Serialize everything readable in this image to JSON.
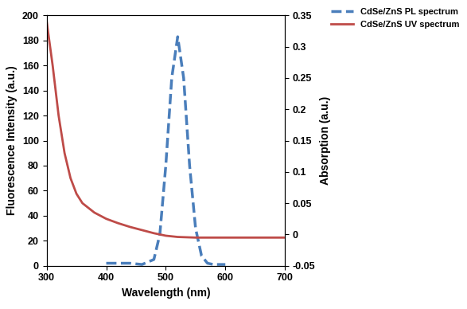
{
  "chart_data": {
    "type": "line",
    "x_label": "Wavelength (nm)",
    "y_label": "Fluorescence Intensity (a.u.)",
    "y2_label": "Absorption (a.u.)",
    "xlim": [
      300,
      700
    ],
    "xticks": [
      300,
      400,
      500,
      600,
      700
    ],
    "ylim": [
      0,
      200
    ],
    "yticks": [
      0,
      20,
      40,
      60,
      80,
      100,
      120,
      140,
      160,
      180,
      200
    ],
    "y2lim": [
      -0.05,
      0.35
    ],
    "y2ticks": [
      -0.05,
      0,
      0.05,
      0.1,
      0.15,
      0.2,
      0.25,
      0.3,
      0.35
    ],
    "grid": false,
    "legend": "upper right",
    "series": [
      {
        "name": "CdSe/ZnS PL spectrum",
        "color": "#4a7ebb",
        "line_style": "dashed",
        "x": [
          400,
          420,
          440,
          460,
          480,
          490,
          500,
          510,
          520,
          530,
          540,
          550,
          560,
          570,
          580,
          600
        ],
        "values": [
          2,
          2,
          2,
          1,
          5,
          25,
          80,
          150,
          183,
          150,
          80,
          30,
          8,
          2,
          1,
          1
        ]
      },
      {
        "name": "CdSe/ZnS UV spectrum",
        "color": "#be4b48",
        "line_style": "solid",
        "axis": "y2",
        "x": [
          300,
          310,
          320,
          330,
          340,
          350,
          360,
          380,
          400,
          420,
          440,
          460,
          480,
          500,
          520,
          550,
          600,
          650,
          700
        ],
        "values": [
          0.34,
          0.27,
          0.19,
          0.13,
          0.09,
          0.065,
          0.05,
          0.035,
          0.025,
          0.018,
          0.012,
          0.007,
          0.002,
          -0.002,
          -0.004,
          -0.005,
          -0.005,
          -0.005,
          -0.005
        ]
      }
    ]
  }
}
